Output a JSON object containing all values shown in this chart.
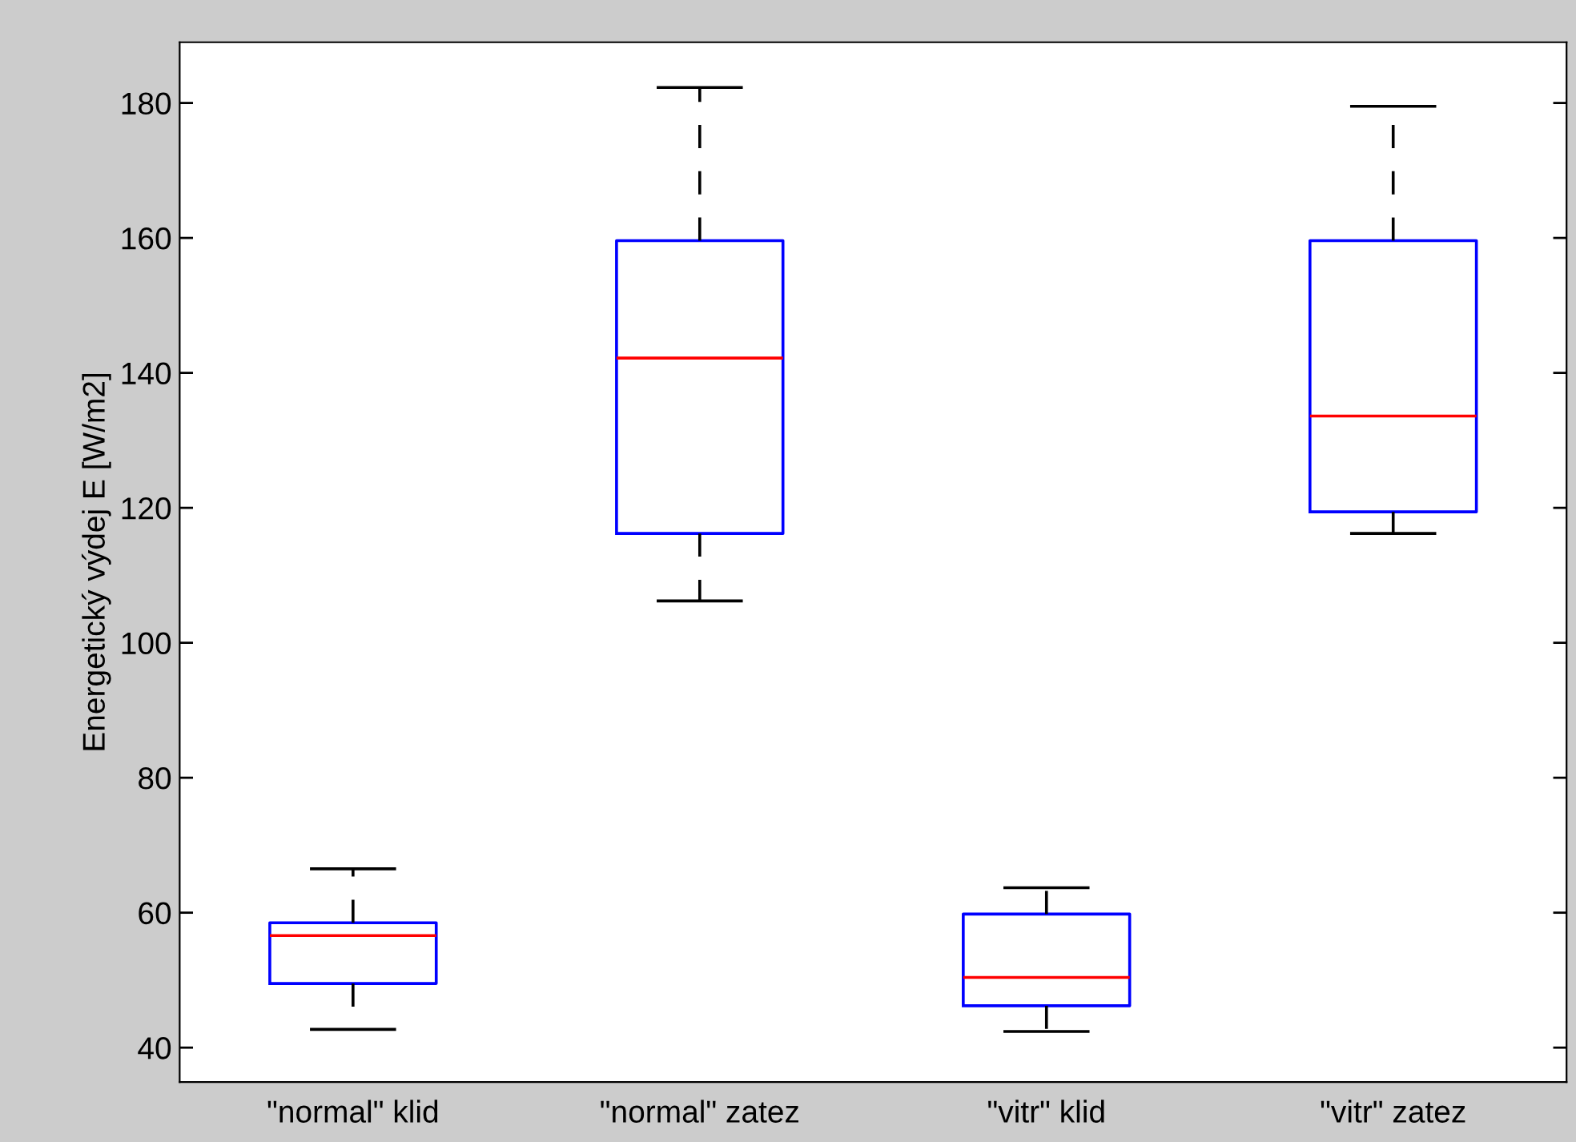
{
  "chart_data": {
    "type": "box",
    "ylabel": "Energetický výdej E [W/m2]",
    "categories": [
      "\"normal\" klid",
      "\"normal\" zatez",
      "\"vitr\" klid",
      "\"vitr\" zatez"
    ],
    "series": [
      {
        "color": "#0000ff",
        "boxes": [
          {
            "low": 42.7,
            "q1": 49.5,
            "median": 56.6,
            "q3": 58.5,
            "high": 66.5
          },
          {
            "low": 106.2,
            "q1": 116.2,
            "median": 142.2,
            "q3": 159.6,
            "high": 182.3
          },
          {
            "low": 42.4,
            "q1": 46.2,
            "median": 50.4,
            "q3": 59.8,
            "high": 63.7
          },
          {
            "low": 116.2,
            "q1": 119.4,
            "median": 133.6,
            "q3": 159.6,
            "high": 179.5
          }
        ]
      }
    ],
    "line_style": "dashed",
    "ylim": [
      34.9,
      189
    ],
    "yticks": [
      40,
      60,
      80,
      100,
      120,
      140,
      160,
      180
    ]
  }
}
